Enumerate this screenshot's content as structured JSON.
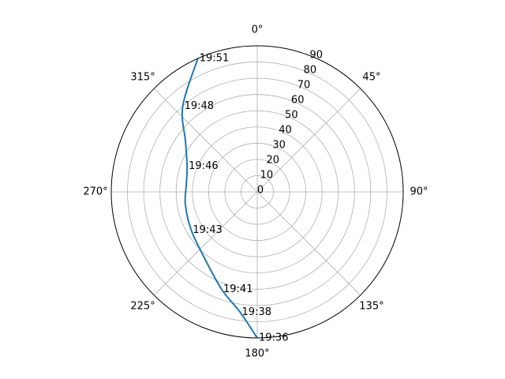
{
  "chart_data": {
    "type": "line",
    "projection": "polar",
    "theta_zero_location": "N",
    "theta_direction": "clockwise",
    "radial_axis": {
      "label": "",
      "range": [
        0,
        90
      ],
      "ticks": [
        0,
        10,
        20,
        30,
        40,
        50,
        60,
        70,
        80,
        90
      ],
      "tick_labels": [
        "90",
        "80",
        "70",
        "60",
        "50",
        "40",
        "30",
        "20",
        "10",
        "0"
      ],
      "note": "elevation: 90 at center, 0 at edge"
    },
    "angular_axis": {
      "ticks": [
        0,
        45,
        90,
        135,
        180,
        225,
        270,
        315
      ],
      "tick_labels": [
        "0°",
        "45°",
        "90°",
        "135°",
        "180°",
        "225°",
        "270°",
        "315°"
      ]
    },
    "grid": true,
    "series": [
      {
        "color": "#1f77b4",
        "points": [
          {
            "az": 180,
            "el": 0
          },
          {
            "az": 188,
            "el": 15
          },
          {
            "az": 200,
            "el": 26
          },
          {
            "az": 219,
            "el": 38
          },
          {
            "az": 240,
            "el": 43
          },
          {
            "az": 260,
            "el": 45
          },
          {
            "az": 277,
            "el": 46
          },
          {
            "az": 290,
            "el": 44
          },
          {
            "az": 305,
            "el": 36
          },
          {
            "az": 319,
            "el": 20
          },
          {
            "az": 336,
            "el": 0
          }
        ]
      }
    ],
    "annotations": [
      {
        "text": "19:36",
        "az": 180,
        "el": 0
      },
      {
        "text": "19:38",
        "az": 188,
        "el": 15
      },
      {
        "text": "19:41",
        "az": 200,
        "el": 26
      },
      {
        "text": "19:43",
        "az": 240,
        "el": 43
      },
      {
        "text": "19:46",
        "az": 290,
        "el": 44
      },
      {
        "text": "19:48",
        "az": 319,
        "el": 20
      },
      {
        "text": "19:51",
        "az": 336,
        "el": 0
      }
    ]
  }
}
